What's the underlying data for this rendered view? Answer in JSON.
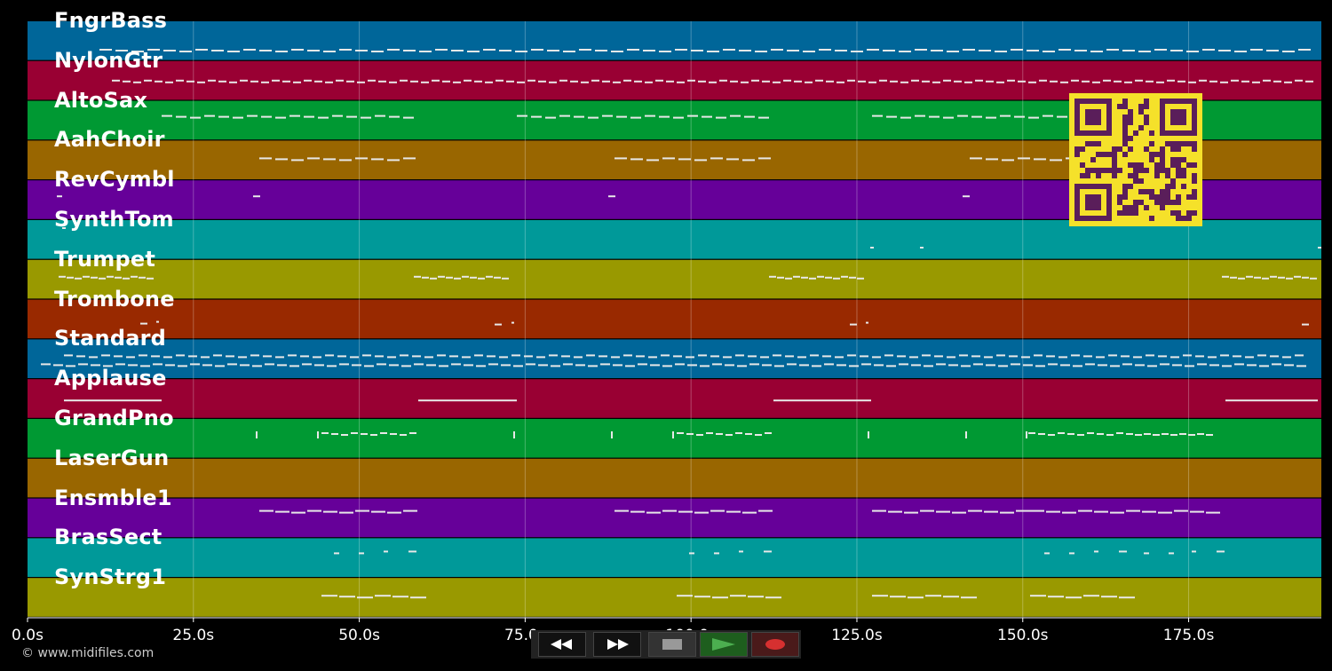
{
  "tracks": [
    {
      "name": "FngrBass",
      "color": "#006699"
    },
    {
      "name": "NylonGtr",
      "color": "#990033"
    },
    {
      "name": "AltoSax",
      "color": "#009933"
    },
    {
      "name": "AahChoir",
      "color": "#996600"
    },
    {
      "name": "RevCymbl",
      "color": "#660099"
    },
    {
      "name": "SynthTom",
      "color": "#009999"
    },
    {
      "name": "Trumpet",
      "color": "#999900"
    },
    {
      "name": "Trombone",
      "color": "#992900"
    },
    {
      "name": "Standard",
      "color": "#006699"
    },
    {
      "name": "Applause",
      "color": "#990033"
    },
    {
      "name": "GrandPno",
      "color": "#009933"
    },
    {
      "name": "LaserGun",
      "color": "#996600"
    },
    {
      "name": "Ensmble1",
      "color": "#660099"
    },
    {
      "name": "BrasSect",
      "color": "#009999"
    },
    {
      "name": "SynStrg1",
      "color": "#999900"
    }
  ],
  "time_axis": {
    "duration_s": 195,
    "ticks": [
      {
        "value": 0,
        "label": "0.0s"
      },
      {
        "value": 25,
        "label": "25.0s"
      },
      {
        "value": 50,
        "label": "50.0s"
      },
      {
        "value": 75,
        "label": "75.0s"
      },
      {
        "value": 100,
        "label": "100.0s"
      },
      {
        "value": 125,
        "label": "125.0s"
      },
      {
        "value": 150,
        "label": "150.0s"
      },
      {
        "value": 175,
        "label": "175.0s"
      }
    ]
  },
  "copyright": "© www.midifiles.com",
  "transport": {
    "buttons": [
      {
        "name": "rewind-button",
        "icon": "rewind-icon"
      },
      {
        "name": "fast-forward-button",
        "icon": "fast-forward-icon"
      },
      {
        "name": "stop-button",
        "icon": "stop-icon"
      },
      {
        "name": "play-button",
        "icon": "play-icon"
      },
      {
        "name": "record-button",
        "icon": "record-icon"
      }
    ]
  },
  "qr_code": {
    "icon": "qr-code-icon",
    "color": "#f5e12a",
    "dark": "#5a1e5a"
  }
}
